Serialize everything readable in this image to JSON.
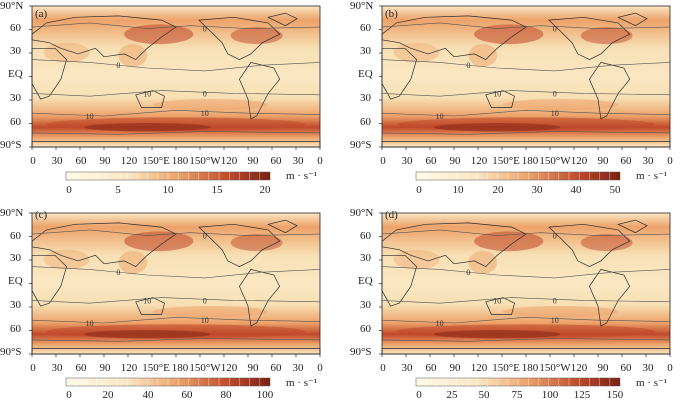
{
  "lat_labels": [
    "90°N",
    "60",
    "30",
    "EQ",
    "30",
    "60",
    "90°S"
  ],
  "lon_labels": [
    "0",
    "30",
    "60",
    "90",
    "120",
    "150°E",
    "180",
    "150°W",
    "120",
    "90",
    "60",
    "30",
    "0"
  ],
  "colorbar_unit": "m · s⁻¹",
  "contour_labels": [
    "0",
    "0",
    "10",
    "0",
    "10",
    "10"
  ],
  "colors": {
    "land_base": "#fbe7c3",
    "ocean_base": "#f7e0b4",
    "mid": "#eda26a",
    "high": "#c0492a",
    "max": "#7a1f12",
    "contour": "#555555"
  },
  "panels": [
    {
      "label": "(a)",
      "ticks": [
        "0",
        "5",
        "10",
        "15",
        "20"
      ]
    },
    {
      "label": "(b)",
      "ticks": [
        "0",
        "10",
        "20",
        "30",
        "40",
        "50"
      ]
    },
    {
      "label": "(c)",
      "ticks": [
        "0",
        "20",
        "40",
        "60",
        "80",
        "100"
      ]
    },
    {
      "label": "(d)",
      "ticks": [
        "0",
        "25",
        "50",
        "75",
        "100",
        "125",
        "150"
      ]
    }
  ]
}
